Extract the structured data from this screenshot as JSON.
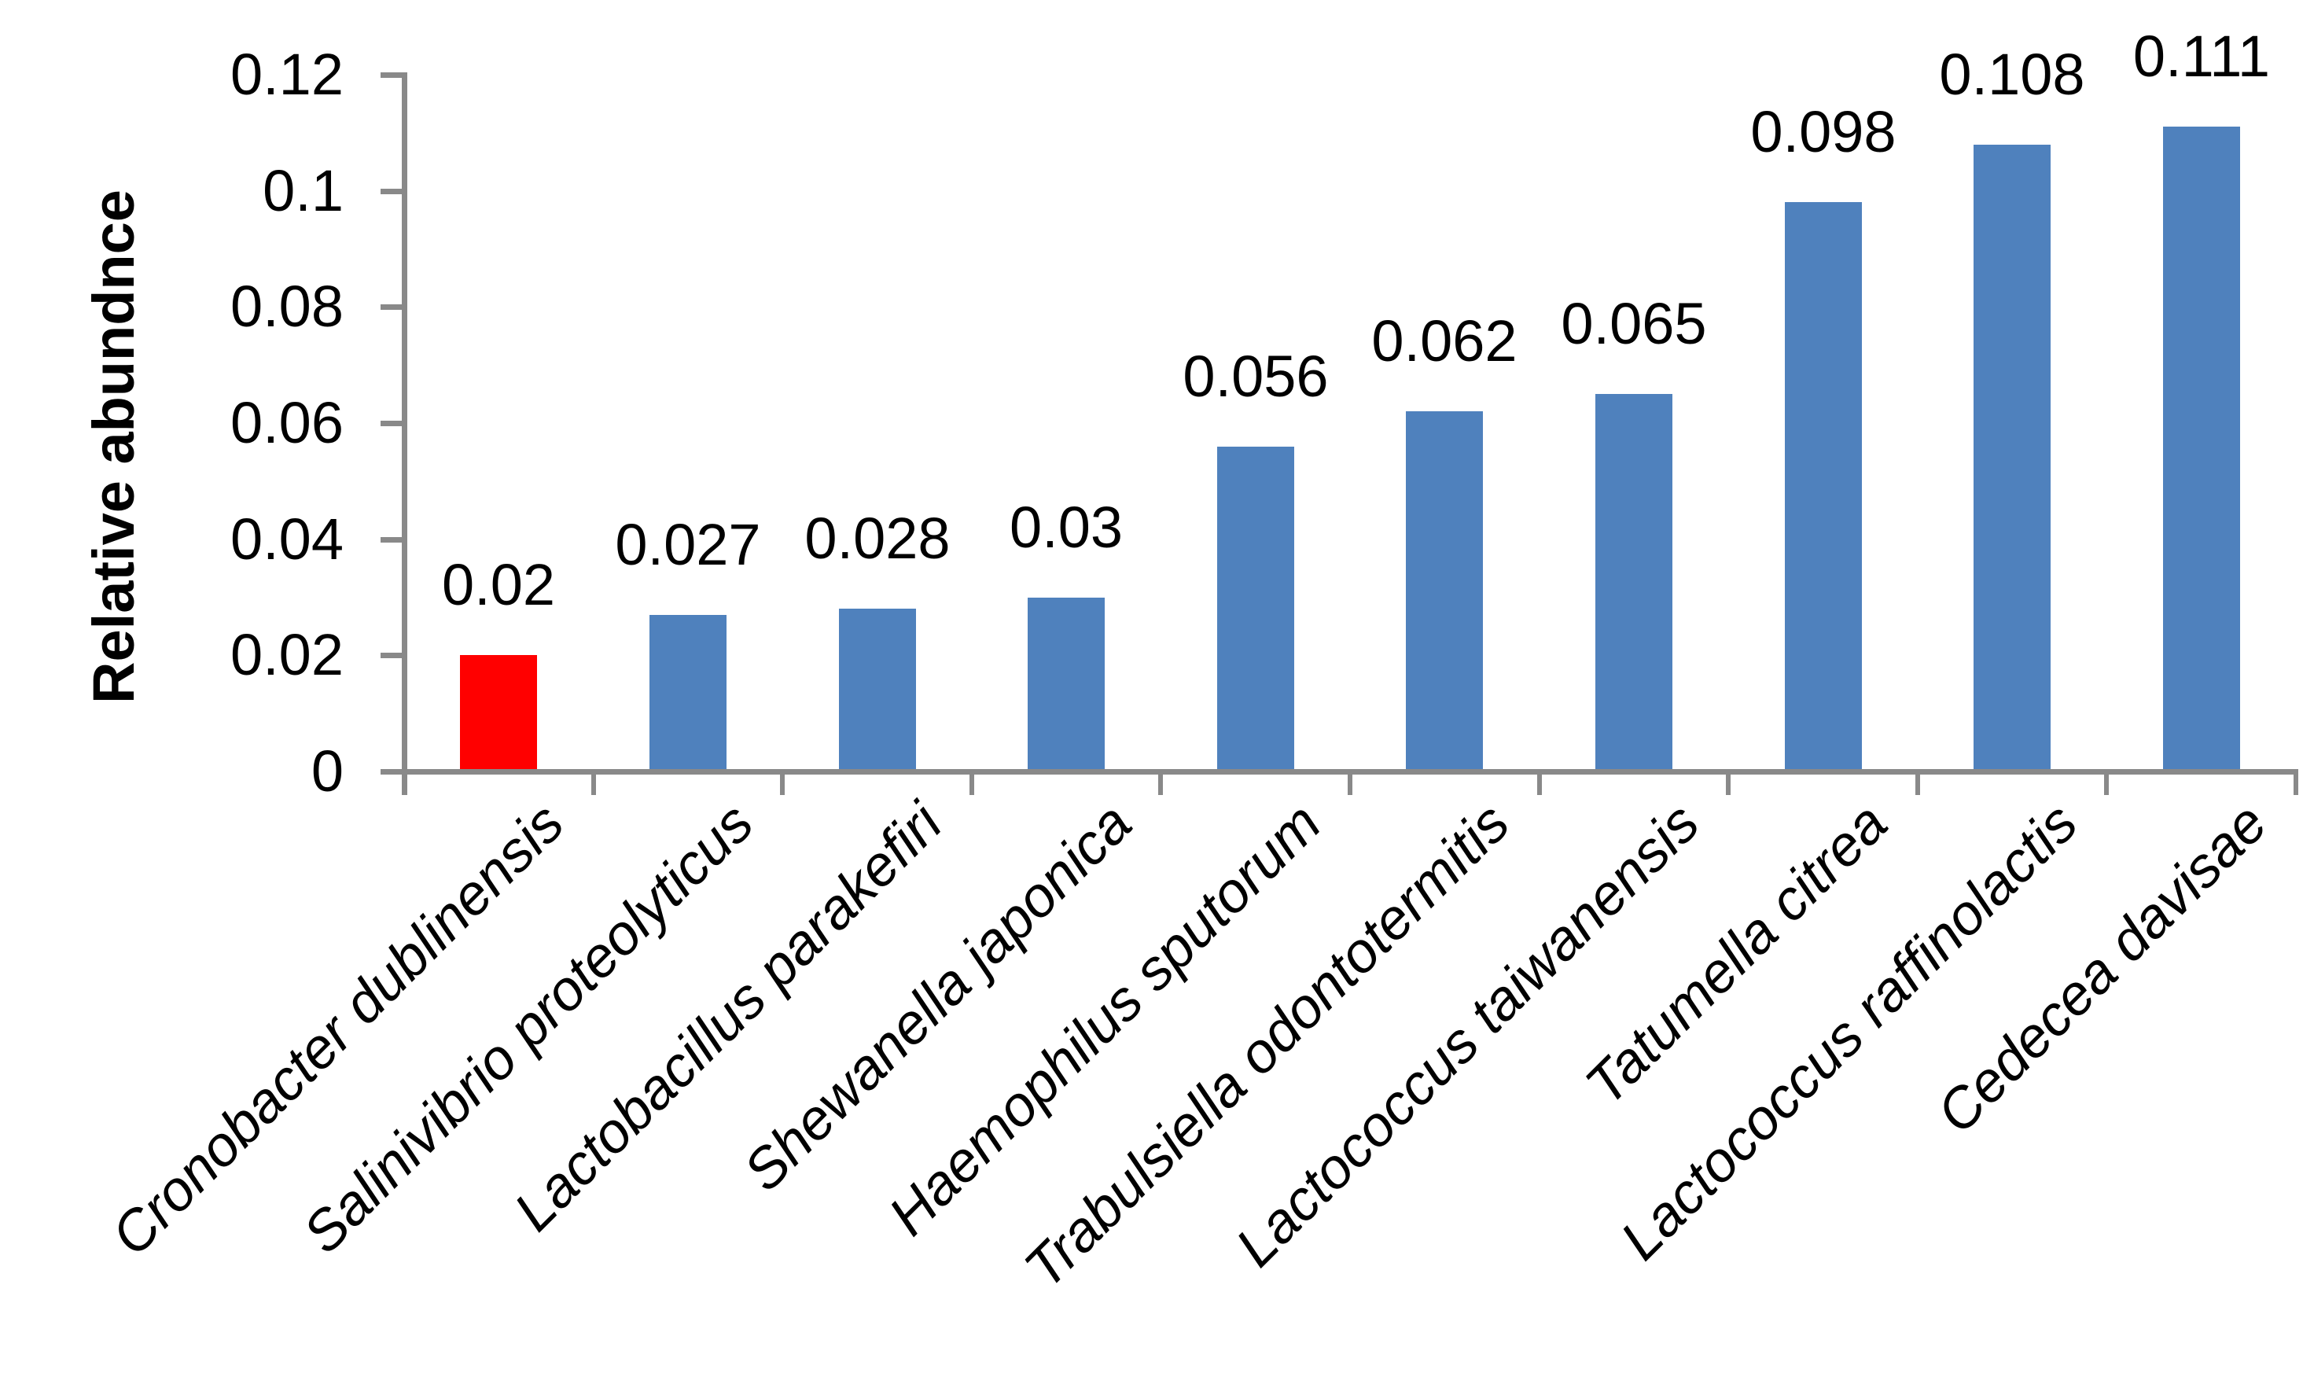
{
  "page": {
    "background": "#FFFFFF"
  },
  "chart_data": {
    "type": "bar",
    "title": "",
    "xlabel": "",
    "ylabel": "Relative abundnce",
    "ylim": [
      0,
      0.12
    ],
    "yticks": [
      0,
      0.02,
      0.04,
      0.06,
      0.08,
      0.1,
      0.12
    ],
    "ytick_labels": [
      "0",
      "0.02",
      "0.04",
      "0.06",
      "0.08",
      "0.1",
      "0.12"
    ],
    "categories": [
      "Cronobacter dublinensis",
      "Salinivibrio proteolyticus",
      "Lactobacillus parakefiri",
      "Shewanella japonica",
      "Haemophilus sputorum",
      "Trabulsiella odontotermitis",
      "Lactococcus taiwanensis",
      "Tatumella citrea",
      "Lactococcus raffinolactis",
      "Cedecea davisae"
    ],
    "values": [
      0.02,
      0.027,
      0.028,
      0.03,
      0.056,
      0.062,
      0.065,
      0.098,
      0.108,
      0.111
    ],
    "data_labels": [
      "0.02",
      "0.027",
      "0.028",
      "0.03",
      "0.056",
      "0.062",
      "0.065",
      "0.098",
      "0.108",
      "0.111"
    ],
    "highlight_index": 0,
    "grid": false,
    "legend": "none",
    "colors": {
      "bar_default": "#4F81BD",
      "bar_highlight": "#FF0000",
      "axis_line": "#898989",
      "label_text": "#000000"
    }
  }
}
